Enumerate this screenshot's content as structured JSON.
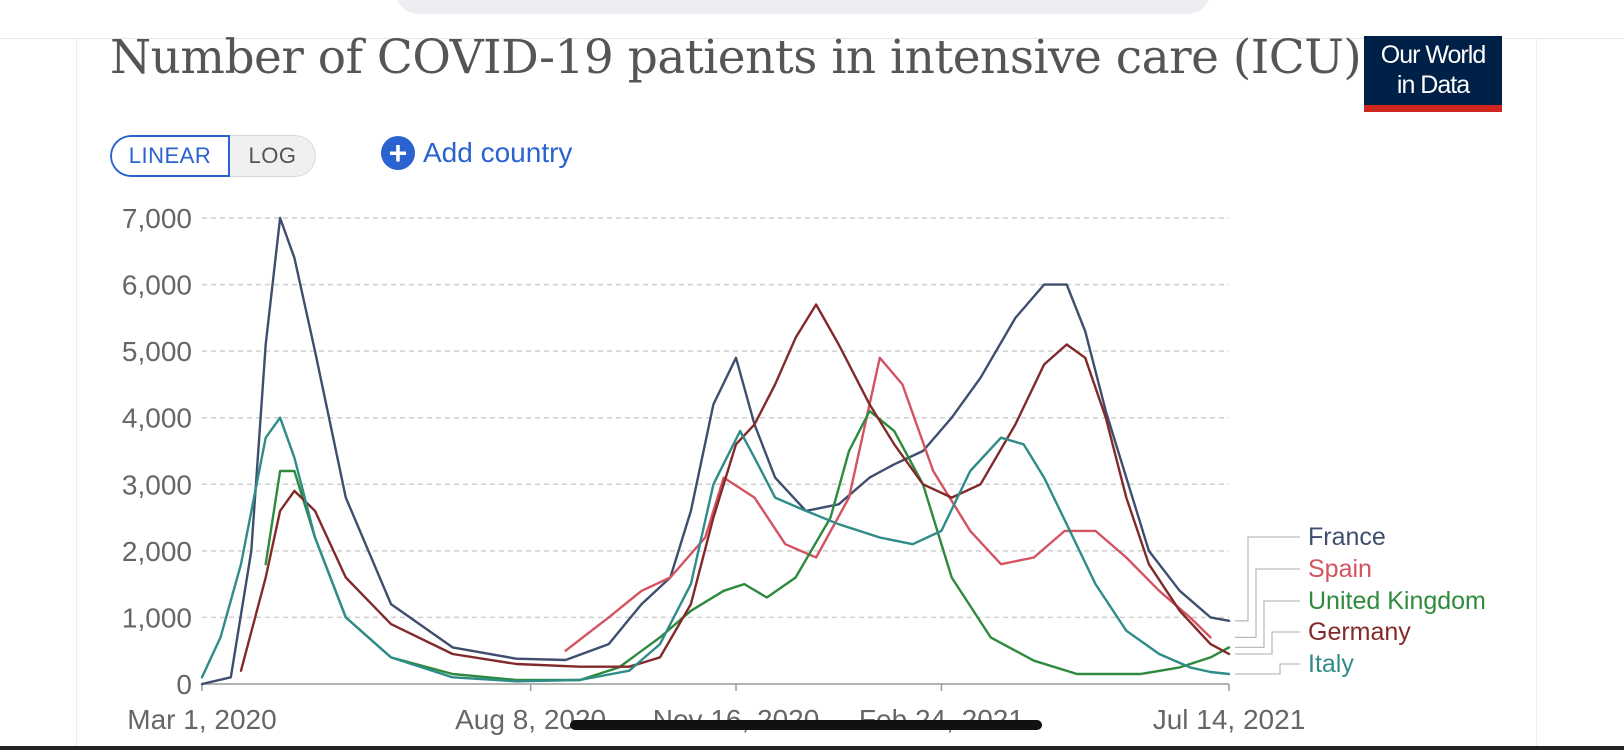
{
  "title": "Number of COVID-19 patients in intensive care (ICU)",
  "logo": {
    "line1": "Our World",
    "line2": "in Data"
  },
  "controls": {
    "linear_label": "LINEAR",
    "log_label": "LOG",
    "selected_scale": "LINEAR",
    "add_country_label": "Add country"
  },
  "colors": {
    "France": "#3f4e6f",
    "Spain": "#d45362",
    "United Kingdom": "#2e8a3c",
    "Germany": "#822a2a",
    "Italy": "#2f8c88",
    "accent": "#2a62cf"
  },
  "chart_data": {
    "type": "line",
    "title": "Number of COVID-19 patients in intensive care (ICU)",
    "xlabel": "",
    "ylabel": "",
    "x_ticks": [
      "Mar 1, 2020",
      "Aug 8, 2020",
      "Nov 16, 2020",
      "Feb 24, 2021",
      "Jul 14, 2021"
    ],
    "xlim": [
      "2020-03-01",
      "2021-07-14"
    ],
    "y_ticks": [
      "0",
      "1,000",
      "2,000",
      "3,000",
      "4,000",
      "5,000",
      "6,000",
      "7,000"
    ],
    "ylim": [
      0,
      7000
    ],
    "grid": "horizontal-dashed",
    "legend": "right",
    "series": [
      {
        "name": "France",
        "x": [
          "2020-03-01",
          "2020-03-15",
          "2020-03-25",
          "2020-04-01",
          "2020-04-08",
          "2020-04-15",
          "2020-04-25",
          "2020-05-10",
          "2020-06-01",
          "2020-07-01",
          "2020-08-01",
          "2020-08-25",
          "2020-09-15",
          "2020-10-01",
          "2020-10-15",
          "2020-10-25",
          "2020-11-05",
          "2020-11-16",
          "2020-11-25",
          "2020-12-05",
          "2020-12-20",
          "2021-01-05",
          "2021-01-20",
          "2021-02-01",
          "2021-02-15",
          "2021-03-01",
          "2021-03-15",
          "2021-04-01",
          "2021-04-15",
          "2021-04-26",
          "2021-05-05",
          "2021-05-15",
          "2021-05-25",
          "2021-06-05",
          "2021-06-20",
          "2021-07-05",
          "2021-07-14"
        ],
        "y": [
          0,
          100,
          2000,
          5100,
          7000,
          6400,
          5000,
          2800,
          1200,
          550,
          380,
          360,
          600,
          1200,
          1600,
          2600,
          4200,
          4900,
          3900,
          3100,
          2600,
          2700,
          3100,
          3300,
          3500,
          4000,
          4600,
          5500,
          6000,
          6000,
          5300,
          4100,
          3100,
          2000,
          1400,
          1000,
          950
        ]
      },
      {
        "name": "Spain",
        "x": [
          "2020-08-25",
          "2020-09-15",
          "2020-10-01",
          "2020-10-15",
          "2020-11-01",
          "2020-11-10",
          "2020-11-25",
          "2020-12-10",
          "2020-12-25",
          "2021-01-10",
          "2021-01-25",
          "2021-02-05",
          "2021-02-20",
          "2021-03-10",
          "2021-03-25",
          "2021-04-10",
          "2021-04-25",
          "2021-05-10",
          "2021-05-25",
          "2021-06-10",
          "2021-06-25",
          "2021-07-05"
        ],
        "y": [
          500,
          1000,
          1400,
          1600,
          2200,
          3100,
          2800,
          2100,
          1900,
          2800,
          4900,
          4500,
          3200,
          2300,
          1800,
          1900,
          2300,
          2300,
          1900,
          1400,
          1000,
          700
        ]
      },
      {
        "name": "United Kingdom",
        "x": [
          "2020-04-01",
          "2020-04-08",
          "2020-04-15",
          "2020-04-25",
          "2020-05-10",
          "2020-06-01",
          "2020-07-01",
          "2020-08-01",
          "2020-09-01",
          "2020-09-20",
          "2020-10-10",
          "2020-10-25",
          "2020-11-10",
          "2020-11-20",
          "2020-12-01",
          "2020-12-15",
          "2021-01-01",
          "2021-01-10",
          "2021-01-20",
          "2021-02-01",
          "2021-02-15",
          "2021-03-01",
          "2021-03-20",
          "2021-04-10",
          "2021-05-01",
          "2021-06-01",
          "2021-06-20",
          "2021-07-05",
          "2021-07-14"
        ],
        "y": [
          1800,
          3200,
          3200,
          2200,
          1000,
          400,
          150,
          60,
          60,
          250,
          700,
          1100,
          1400,
          1500,
          1300,
          1600,
          2500,
          3500,
          4100,
          3800,
          3000,
          1600,
          700,
          350,
          150,
          150,
          250,
          400,
          550
        ]
      },
      {
        "name": "Germany",
        "x": [
          "2020-03-20",
          "2020-04-01",
          "2020-04-08",
          "2020-04-15",
          "2020-04-25",
          "2020-05-10",
          "2020-06-01",
          "2020-07-01",
          "2020-08-01",
          "2020-09-01",
          "2020-09-25",
          "2020-10-10",
          "2020-10-25",
          "2020-11-05",
          "2020-11-16",
          "2020-11-25",
          "2020-12-05",
          "2020-12-15",
          "2020-12-25",
          "2021-01-05",
          "2021-01-20",
          "2021-02-01",
          "2021-02-15",
          "2021-03-01",
          "2021-03-15",
          "2021-04-01",
          "2021-04-15",
          "2021-04-26",
          "2021-05-05",
          "2021-05-15",
          "2021-05-25",
          "2021-06-05",
          "2021-06-20",
          "2021-07-05",
          "2021-07-14"
        ],
        "y": [
          200,
          1600,
          2600,
          2900,
          2600,
          1600,
          900,
          450,
          300,
          260,
          260,
          400,
          1200,
          2500,
          3600,
          3900,
          4500,
          5200,
          5700,
          5100,
          4200,
          3600,
          3000,
          2800,
          3000,
          3900,
          4800,
          5100,
          4900,
          4000,
          2800,
          1800,
          1100,
          600,
          450
        ]
      },
      {
        "name": "Italy",
        "x": [
          "2020-03-01",
          "2020-03-10",
          "2020-03-20",
          "2020-04-01",
          "2020-04-08",
          "2020-04-15",
          "2020-04-25",
          "2020-05-10",
          "2020-06-01",
          "2020-07-01",
          "2020-08-01",
          "2020-09-01",
          "2020-09-25",
          "2020-10-10",
          "2020-10-25",
          "2020-11-05",
          "2020-11-18",
          "2020-11-25",
          "2020-12-05",
          "2020-12-20",
          "2021-01-05",
          "2021-01-25",
          "2021-02-10",
          "2021-02-24",
          "2021-03-10",
          "2021-03-25",
          "2021-04-05",
          "2021-04-15",
          "2021-04-26",
          "2021-05-10",
          "2021-05-25",
          "2021-06-10",
          "2021-06-25",
          "2021-07-05",
          "2021-07-14"
        ],
        "y": [
          100,
          700,
          1800,
          3700,
          4000,
          3400,
          2200,
          1000,
          400,
          100,
          40,
          60,
          200,
          600,
          1500,
          3000,
          3800,
          3400,
          2800,
          2600,
          2400,
          2200,
          2100,
          2300,
          3200,
          3700,
          3600,
          3100,
          2400,
          1500,
          800,
          450,
          250,
          180,
          150
        ]
      }
    ]
  }
}
